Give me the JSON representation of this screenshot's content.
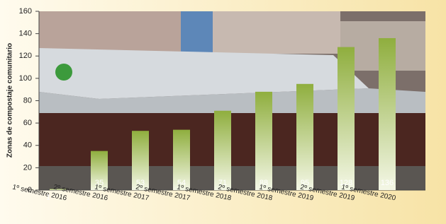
{
  "chart_data": {
    "type": "bar",
    "y_label": "Zonas de compostaje comunitario",
    "categories": [
      "1º semestre 2016",
      "2º semestre 2016",
      "1º semestre 2017",
      "2º semestre 2017",
      "1º semestre 2018",
      "2º semestre 2018",
      "1º semestre 2019",
      "2º semestre 2019",
      "1º semestre 2020"
    ],
    "values": [
      1,
      35,
      53,
      54,
      71,
      88,
      95,
      128,
      136
    ],
    "color": "#8fae3e",
    "ylim": [
      0,
      160
    ],
    "yticks": [
      0,
      20,
      40,
      60,
      80,
      100,
      120,
      140,
      160
    ]
  }
}
